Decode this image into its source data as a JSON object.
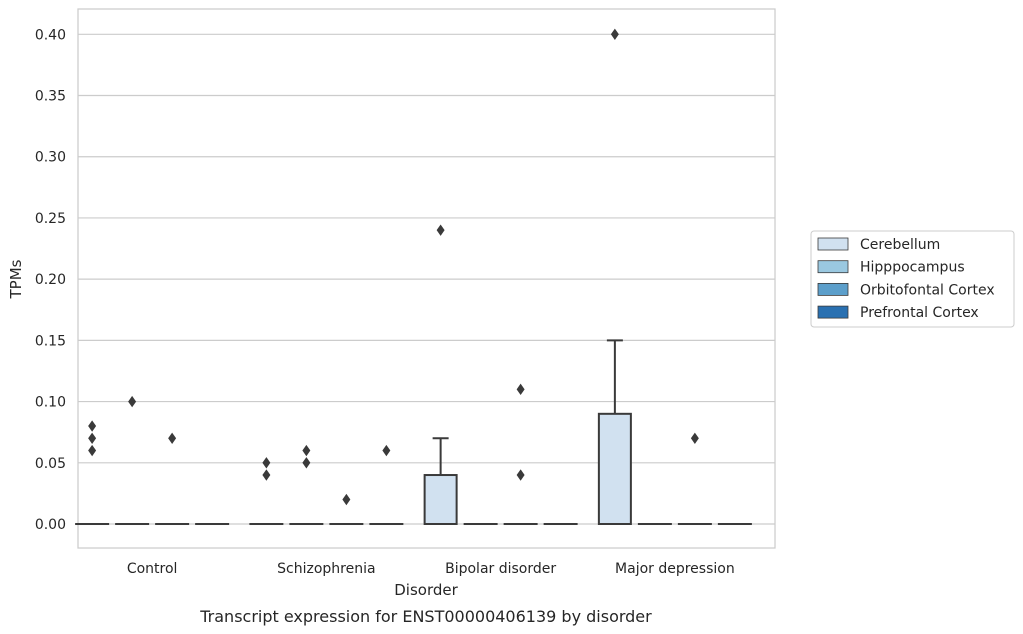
{
  "caption": "Transcript expression for ENST00000406139 by disorder",
  "colors": {
    "Cerebellum": "#d1e1f0",
    "Hipppocampus": "#9ac8e0",
    "Orbitofontal Cortex": "#5c9fcb",
    "Prefrontal Cortex": "#2970b1",
    "grid": "#cccccc",
    "frame": "#cccccc",
    "box_line": "#3a3a3a"
  },
  "chart_data": {
    "type": "box",
    "xlabel": "Disorder",
    "ylabel": "TPMs",
    "ylim": [
      -0.02,
      0.42
    ],
    "yticks": [
      "0.00",
      "0.05",
      "0.10",
      "0.15",
      "0.20",
      "0.25",
      "0.30",
      "0.35",
      "0.40"
    ],
    "grid": true,
    "legend_position": "right",
    "categories": [
      "Control",
      "Schizophrenia",
      "Bipolar disorder",
      "Major depression"
    ],
    "series": [
      {
        "name": "Cerebellum",
        "boxes": [
          {
            "q1": 0,
            "median": 0,
            "q3": 0,
            "whisker_low": 0,
            "whisker_high": 0,
            "outliers": [
              0.06,
              0.07,
              0.08
            ]
          },
          {
            "q1": 0,
            "median": 0,
            "q3": 0,
            "whisker_low": 0,
            "whisker_high": 0,
            "outliers": [
              0.04,
              0.05
            ]
          },
          {
            "q1": 0,
            "median": 0,
            "q3": 0.04,
            "whisker_low": 0,
            "whisker_high": 0.07,
            "outliers": [
              0.24
            ]
          },
          {
            "q1": 0,
            "median": 0,
            "q3": 0.09,
            "whisker_low": 0,
            "whisker_high": 0.15,
            "outliers": [
              0.4
            ]
          }
        ]
      },
      {
        "name": "Hipppocampus",
        "boxes": [
          {
            "q1": 0,
            "median": 0,
            "q3": 0,
            "whisker_low": 0,
            "whisker_high": 0,
            "outliers": [
              0.1
            ]
          },
          {
            "q1": 0,
            "median": 0,
            "q3": 0,
            "whisker_low": 0,
            "whisker_high": 0,
            "outliers": [
              0.05,
              0.06
            ]
          },
          {
            "q1": 0,
            "median": 0,
            "q3": 0,
            "whisker_low": 0,
            "whisker_high": 0,
            "outliers": []
          },
          {
            "q1": 0,
            "median": 0,
            "q3": 0,
            "whisker_low": 0,
            "whisker_high": 0,
            "outliers": []
          }
        ]
      },
      {
        "name": "Orbitofontal Cortex",
        "boxes": [
          {
            "q1": 0,
            "median": 0,
            "q3": 0,
            "whisker_low": 0,
            "whisker_high": 0,
            "outliers": [
              0.07
            ]
          },
          {
            "q1": 0,
            "median": 0,
            "q3": 0,
            "whisker_low": 0,
            "whisker_high": 0,
            "outliers": [
              0.02
            ]
          },
          {
            "q1": 0,
            "median": 0,
            "q3": 0,
            "whisker_low": 0,
            "whisker_high": 0,
            "outliers": [
              0.04,
              0.11
            ]
          },
          {
            "q1": 0,
            "median": 0,
            "q3": 0,
            "whisker_low": 0,
            "whisker_high": 0,
            "outliers": [
              0.07
            ]
          }
        ]
      },
      {
        "name": "Prefrontal Cortex",
        "boxes": [
          {
            "q1": 0,
            "median": 0,
            "q3": 0,
            "whisker_low": 0,
            "whisker_high": 0,
            "outliers": []
          },
          {
            "q1": 0,
            "median": 0,
            "q3": 0,
            "whisker_low": 0,
            "whisker_high": 0,
            "outliers": [
              0.06
            ]
          },
          {
            "q1": 0,
            "median": 0,
            "q3": 0,
            "whisker_low": 0,
            "whisker_high": 0,
            "outliers": []
          },
          {
            "q1": 0,
            "median": 0,
            "q3": 0,
            "whisker_low": 0,
            "whisker_high": 0,
            "outliers": []
          }
        ]
      }
    ]
  }
}
